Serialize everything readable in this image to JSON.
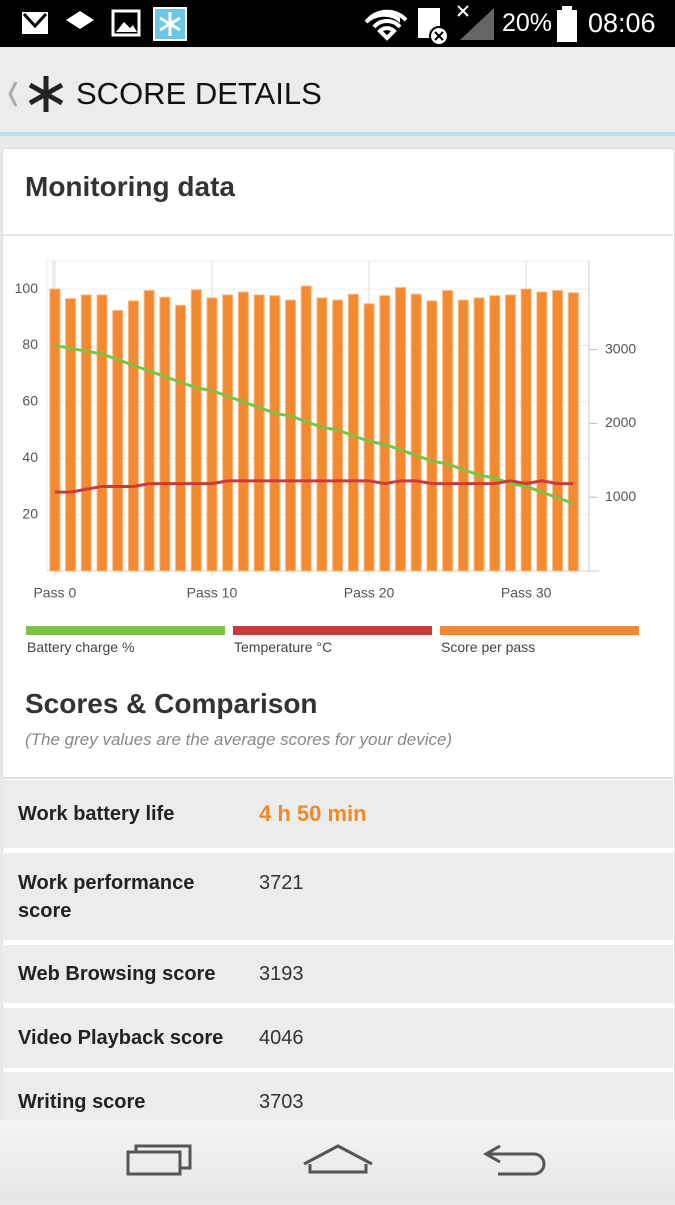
{
  "status_bar": {
    "battery": "20%",
    "time": "08:06"
  },
  "header": {
    "title": "SCORE DETAILS"
  },
  "monitoring": {
    "title": "Monitoring data"
  },
  "chart_data": {
    "type": "bar",
    "x": [
      0,
      1,
      2,
      3,
      4,
      5,
      6,
      7,
      8,
      9,
      10,
      11,
      12,
      13,
      14,
      15,
      16,
      17,
      18,
      19,
      20,
      21,
      22,
      23,
      24,
      25,
      26,
      27,
      28,
      29,
      30,
      31,
      32,
      33
    ],
    "xlim": [
      -0.5,
      34
    ],
    "xticks": [
      {
        "value": 0,
        "label": "Pass 0"
      },
      {
        "value": 10,
        "label": "Pass 10"
      },
      {
        "value": 20,
        "label": "Pass 20"
      },
      {
        "value": 30,
        "label": "Pass 30"
      }
    ],
    "ylim": [
      0,
      110
    ],
    "yticks": [
      20,
      40,
      60,
      80,
      100
    ],
    "y2lim": [
      0,
      4200
    ],
    "y2ticks": [
      1000,
      2000,
      3000
    ],
    "grid": true,
    "series": [
      {
        "name": "Battery charge %",
        "type": "line",
        "color": "#7dc242",
        "values": [
          80,
          79,
          78,
          77,
          75,
          73,
          71,
          69,
          67,
          65,
          64,
          62,
          60,
          58,
          56,
          55,
          53,
          51,
          50,
          48,
          46,
          45,
          43,
          41,
          39,
          38,
          36,
          34,
          33,
          31,
          30,
          28,
          26,
          24
        ]
      },
      {
        "name": "Temperature °C",
        "type": "line",
        "color": "#cc3b3b",
        "values": [
          28,
          28,
          29,
          30,
          30,
          30,
          31,
          31,
          31,
          31,
          31,
          32,
          32,
          32,
          32,
          32,
          32,
          32,
          32,
          32,
          32,
          31,
          32,
          32,
          31,
          31,
          31,
          31,
          31,
          32,
          31,
          32,
          31,
          31
        ]
      },
      {
        "name": "Score per pass",
        "type": "bar",
        "color": "#f5892f",
        "axis": "y2",
        "values": [
          3820,
          3690,
          3740,
          3740,
          3530,
          3660,
          3800,
          3710,
          3600,
          3810,
          3700,
          3740,
          3780,
          3740,
          3730,
          3670,
          3860,
          3700,
          3670,
          3750,
          3620,
          3730,
          3840,
          3750,
          3660,
          3800,
          3670,
          3700,
          3730,
          3740,
          3820,
          3780,
          3800,
          3770
        ]
      }
    ]
  },
  "scores": {
    "title": "Scores & Comparison",
    "subtitle": "(The grey values are the average scores for your device)",
    "rows": [
      {
        "label": "Work battery life",
        "value": "4 h 50 min"
      },
      {
        "label": "Work performance score",
        "value": "3721"
      },
      {
        "label": "Web Browsing score",
        "value": "3193"
      },
      {
        "label": "Video Playback score",
        "value": "4046"
      },
      {
        "label": "Writing score",
        "value": "3703"
      }
    ]
  }
}
